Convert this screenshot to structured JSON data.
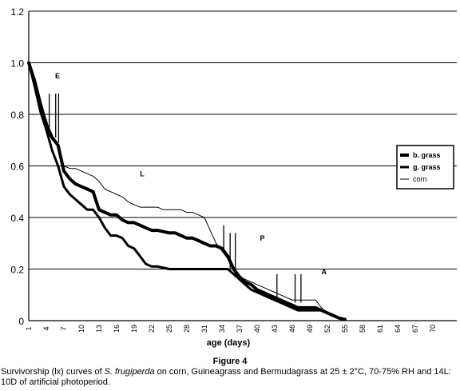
{
  "figure": {
    "label": "Figure 4",
    "caption_pre": "Survivorship (lx) curves of ",
    "caption_species": "S. frugiperda",
    "caption_post": " on corn, Guineagrass and Bermudagrass at 25 ± 2°C, 70-75% RH and 14L: 10D of artificial photoperiod."
  },
  "chart_data": {
    "type": "line",
    "title": "",
    "xlabel": "age (days)",
    "ylabel": "",
    "xlim": [
      1,
      72
    ],
    "ylim": [
      0,
      1.2
    ],
    "x_ticks": [
      1,
      4,
      7,
      10,
      13,
      16,
      19,
      22,
      25,
      28,
      31,
      34,
      37,
      40,
      43,
      46,
      49,
      52,
      55,
      58,
      61,
      64,
      67,
      70
    ],
    "y_ticks": [
      0,
      0.2,
      0.4,
      0.6,
      0.8,
      1.0,
      1.2
    ],
    "y_tick_labels": [
      "0",
      "0.2",
      "0.4",
      "0.6",
      "0.8",
      "1.0",
      "1.2"
    ],
    "grid": "horizontal",
    "legend_position": "right",
    "series": [
      {
        "name": "b. grass",
        "style": "thick",
        "x": [
          1,
          2,
          3,
          4,
          5,
          6,
          7,
          8,
          9,
          10,
          11,
          12,
          13,
          14,
          15,
          16,
          17,
          18,
          19,
          20,
          21,
          22,
          23,
          24,
          25,
          26,
          27,
          28,
          29,
          30,
          31,
          32,
          33,
          34,
          35,
          36,
          37,
          38,
          39,
          40,
          41,
          42,
          43,
          44,
          45,
          46,
          47,
          48,
          49,
          50,
          51,
          52,
          53,
          54,
          55
        ],
        "y": [
          1.0,
          0.93,
          0.84,
          0.76,
          0.71,
          0.68,
          0.58,
          0.55,
          0.53,
          0.52,
          0.51,
          0.5,
          0.43,
          0.42,
          0.41,
          0.41,
          0.39,
          0.38,
          0.38,
          0.37,
          0.36,
          0.35,
          0.35,
          0.345,
          0.34,
          0.34,
          0.33,
          0.32,
          0.32,
          0.31,
          0.3,
          0.29,
          0.29,
          0.28,
          0.25,
          0.2,
          0.17,
          0.15,
          0.14,
          0.12,
          0.11,
          0.1,
          0.09,
          0.08,
          0.07,
          0.06,
          0.05,
          0.05,
          0.05,
          0.05,
          0.04,
          0.03,
          0.02,
          0.01,
          0.005
        ]
      },
      {
        "name": "g. grass",
        "style": "medium",
        "x": [
          1,
          2,
          3,
          4,
          5,
          6,
          7,
          8,
          9,
          10,
          11,
          12,
          13,
          14,
          15,
          16,
          17,
          18,
          19,
          20,
          21,
          22,
          23,
          24,
          25,
          26,
          27,
          28,
          29,
          30,
          31,
          32,
          33,
          34,
          35,
          36,
          37,
          38,
          39,
          40,
          41,
          42,
          43,
          44,
          45,
          46,
          47,
          48,
          49,
          50,
          51,
          52,
          53,
          54,
          55
        ],
        "y": [
          1.0,
          0.91,
          0.81,
          0.74,
          0.66,
          0.6,
          0.52,
          0.49,
          0.47,
          0.45,
          0.43,
          0.43,
          0.4,
          0.36,
          0.33,
          0.33,
          0.32,
          0.29,
          0.28,
          0.25,
          0.22,
          0.21,
          0.21,
          0.205,
          0.2,
          0.2,
          0.2,
          0.2,
          0.2,
          0.2,
          0.2,
          0.2,
          0.2,
          0.2,
          0.2,
          0.18,
          0.16,
          0.14,
          0.12,
          0.11,
          0.1,
          0.09,
          0.08,
          0.07,
          0.06,
          0.05,
          0.04,
          0.04,
          0.04,
          0.04,
          0.04,
          0.03,
          0.02,
          0.01,
          0.005
        ]
      },
      {
        "name": "corn",
        "style": "thin",
        "x": [
          1,
          2,
          3,
          4,
          5,
          6,
          7,
          8,
          9,
          10,
          11,
          12,
          13,
          14,
          15,
          16,
          17,
          18,
          19,
          20,
          21,
          22,
          23,
          24,
          25,
          26,
          27,
          28,
          29,
          30,
          31,
          32,
          33,
          34,
          35,
          36,
          37,
          38,
          39,
          40,
          41,
          42,
          43,
          44,
          45,
          46,
          47,
          48,
          49,
          50,
          51,
          52,
          53,
          54,
          55
        ],
        "y": [
          1.0,
          0.9,
          0.82,
          0.78,
          0.7,
          0.69,
          0.6,
          0.59,
          0.59,
          0.58,
          0.57,
          0.56,
          0.54,
          0.51,
          0.5,
          0.49,
          0.48,
          0.46,
          0.45,
          0.44,
          0.44,
          0.44,
          0.44,
          0.43,
          0.43,
          0.43,
          0.43,
          0.42,
          0.42,
          0.41,
          0.4,
          0.35,
          0.3,
          0.27,
          0.24,
          0.2,
          0.17,
          0.16,
          0.15,
          0.14,
          0.13,
          0.12,
          0.11,
          0.1,
          0.09,
          0.08,
          0.08,
          0.08,
          0.08,
          0.08,
          0.05,
          0.03,
          0.02,
          0.01,
          0.005
        ]
      }
    ],
    "stage_markers": [
      {
        "label": "E",
        "x": 5.5,
        "y": 0.94
      },
      {
        "label": "L",
        "x": 20,
        "y": 0.56
      },
      {
        "label": "P",
        "x": 40.5,
        "y": 0.31
      },
      {
        "label": "A",
        "x": 51,
        "y": 0.18
      }
    ],
    "vertical_markers": [
      {
        "x": 4.5,
        "y_top": 0.88,
        "y_bottom": 0.71
      },
      {
        "x": 5.6,
        "y_top": 0.88,
        "y_bottom": 0.71
      },
      {
        "x": 6.1,
        "y_top": 0.88,
        "y_bottom": 0.69
      },
      {
        "x": 34.3,
        "y_top": 0.37,
        "y_bottom": 0.27
      },
      {
        "x": 35.4,
        "y_top": 0.34,
        "y_bottom": 0.19
      },
      {
        "x": 36.3,
        "y_top": 0.34,
        "y_bottom": 0.18
      },
      {
        "x": 43.4,
        "y_top": 0.18,
        "y_bottom": 0.08
      },
      {
        "x": 46.5,
        "y_top": 0.18,
        "y_bottom": 0.07
      },
      {
        "x": 47.5,
        "y_top": 0.18,
        "y_bottom": 0.07
      }
    ]
  }
}
